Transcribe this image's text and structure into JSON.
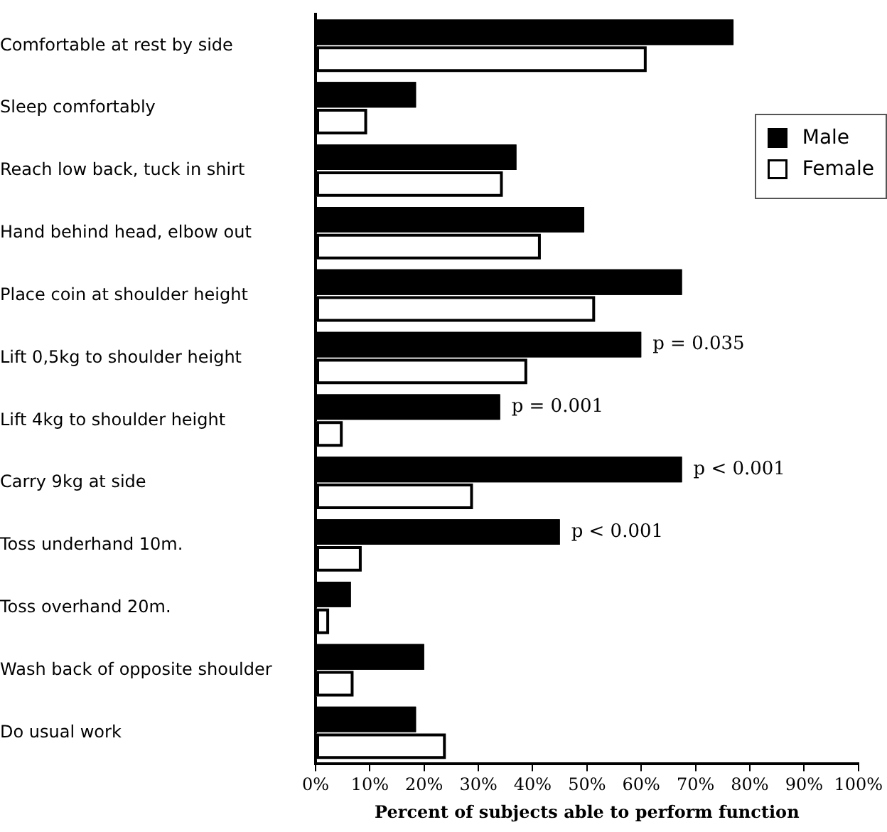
{
  "chart_data": {
    "type": "bar",
    "orientation": "horizontal",
    "xlabel": "Percent of subjects able to perform function",
    "categories": [
      "Comfortable at rest by side",
      "Sleep comfortably",
      "Reach low back, tuck in shirt",
      "Hand behind head, elbow out",
      "Place coin at shoulder height",
      "Lift 0,5kg to shoulder height",
      "Lift 4kg to shoulder height",
      "Carry 9kg at side",
      "Toss underhand 10m.",
      "Toss overhand 20m.",
      "Wash back of opposite shoulder",
      "Do usual work"
    ],
    "series": [
      {
        "name": "Male",
        "color": "#000000",
        "values": [
          77,
          18.5,
          37,
          49.5,
          67.5,
          60,
          34,
          67.5,
          45,
          6.5,
          20,
          18.5
        ]
      },
      {
        "name": "Female",
        "color": "#ffffff",
        "values": [
          61,
          9.5,
          34.5,
          41.5,
          51.5,
          39,
          5,
          29,
          8.5,
          2.5,
          7,
          24
        ]
      }
    ],
    "xlim": [
      0,
      100
    ],
    "xticks": [
      {
        "value": 0,
        "label": "0%"
      },
      {
        "value": 10,
        "label": "10%"
      },
      {
        "value": 20,
        "label": "20%"
      },
      {
        "value": 30,
        "label": "30%"
      },
      {
        "value": 40,
        "label": "40%"
      },
      {
        "value": 50,
        "label": "50%"
      },
      {
        "value": 60,
        "label": "60%"
      },
      {
        "value": 70,
        "label": "70%"
      },
      {
        "value": 80,
        "label": "80%"
      },
      {
        "value": 90,
        "label": "90%"
      },
      {
        "value": 100,
        "label": "100%"
      }
    ],
    "annotations": [
      {
        "text": "p = 0.035",
        "x": 60,
        "y": "Lift 0,5kg to shoulder height"
      },
      {
        "text": "p = 0.001",
        "x": 34,
        "y": "Lift 4kg to shoulder height"
      },
      {
        "text": "p < 0.001",
        "x": 67.5,
        "y": "Carry 9kg at side"
      },
      {
        "text": "p < 0.001",
        "x": 45,
        "y": "Toss underhand 10m."
      }
    ],
    "grid": false,
    "legend": "top right"
  }
}
